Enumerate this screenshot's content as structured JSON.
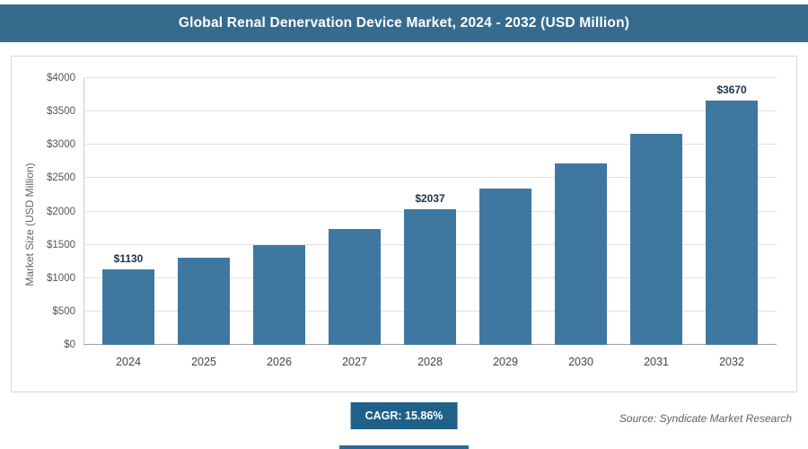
{
  "header": {
    "title": "Global Renal Denervation Device Market, 2024 - 2032 (USD Million)"
  },
  "chart_data": {
    "type": "bar",
    "title": "Global Renal Denervation Device Market, 2024 - 2032 (USD Million)",
    "categories": [
      "2024",
      "2025",
      "2026",
      "2027",
      "2028",
      "2029",
      "2030",
      "2031",
      "2032"
    ],
    "values": [
      1130,
      1300,
      1500,
      1740,
      2037,
      2350,
      2720,
      3160,
      3670
    ],
    "labeled_points": [
      {
        "index": 0,
        "label": "$1130"
      },
      {
        "index": 4,
        "label": "$2037"
      },
      {
        "index": 8,
        "label": "$3670"
      }
    ],
    "xlabel": "",
    "ylabel": "Market Size (USD Million)",
    "ylim": [
      0,
      4000
    ],
    "ytick_step": 500,
    "ytick_labels": [
      "$0",
      "$500",
      "$1000",
      "$1500",
      "$2000",
      "$2500",
      "$3000",
      "$3500",
      "$4000"
    ],
    "grid": true,
    "legend": "none",
    "bar_color": "#3e78a1"
  },
  "footer": {
    "cagr_label": "CAGR: 15.86%",
    "source": "Source: Syndicate Market Research"
  },
  "colors": {
    "header_bg": "#376b8e",
    "bar": "#3e78a1",
    "cagr_bg": "#20618a",
    "accent_bar": "#2e6a93",
    "grid_line": "#e0e0e0"
  }
}
